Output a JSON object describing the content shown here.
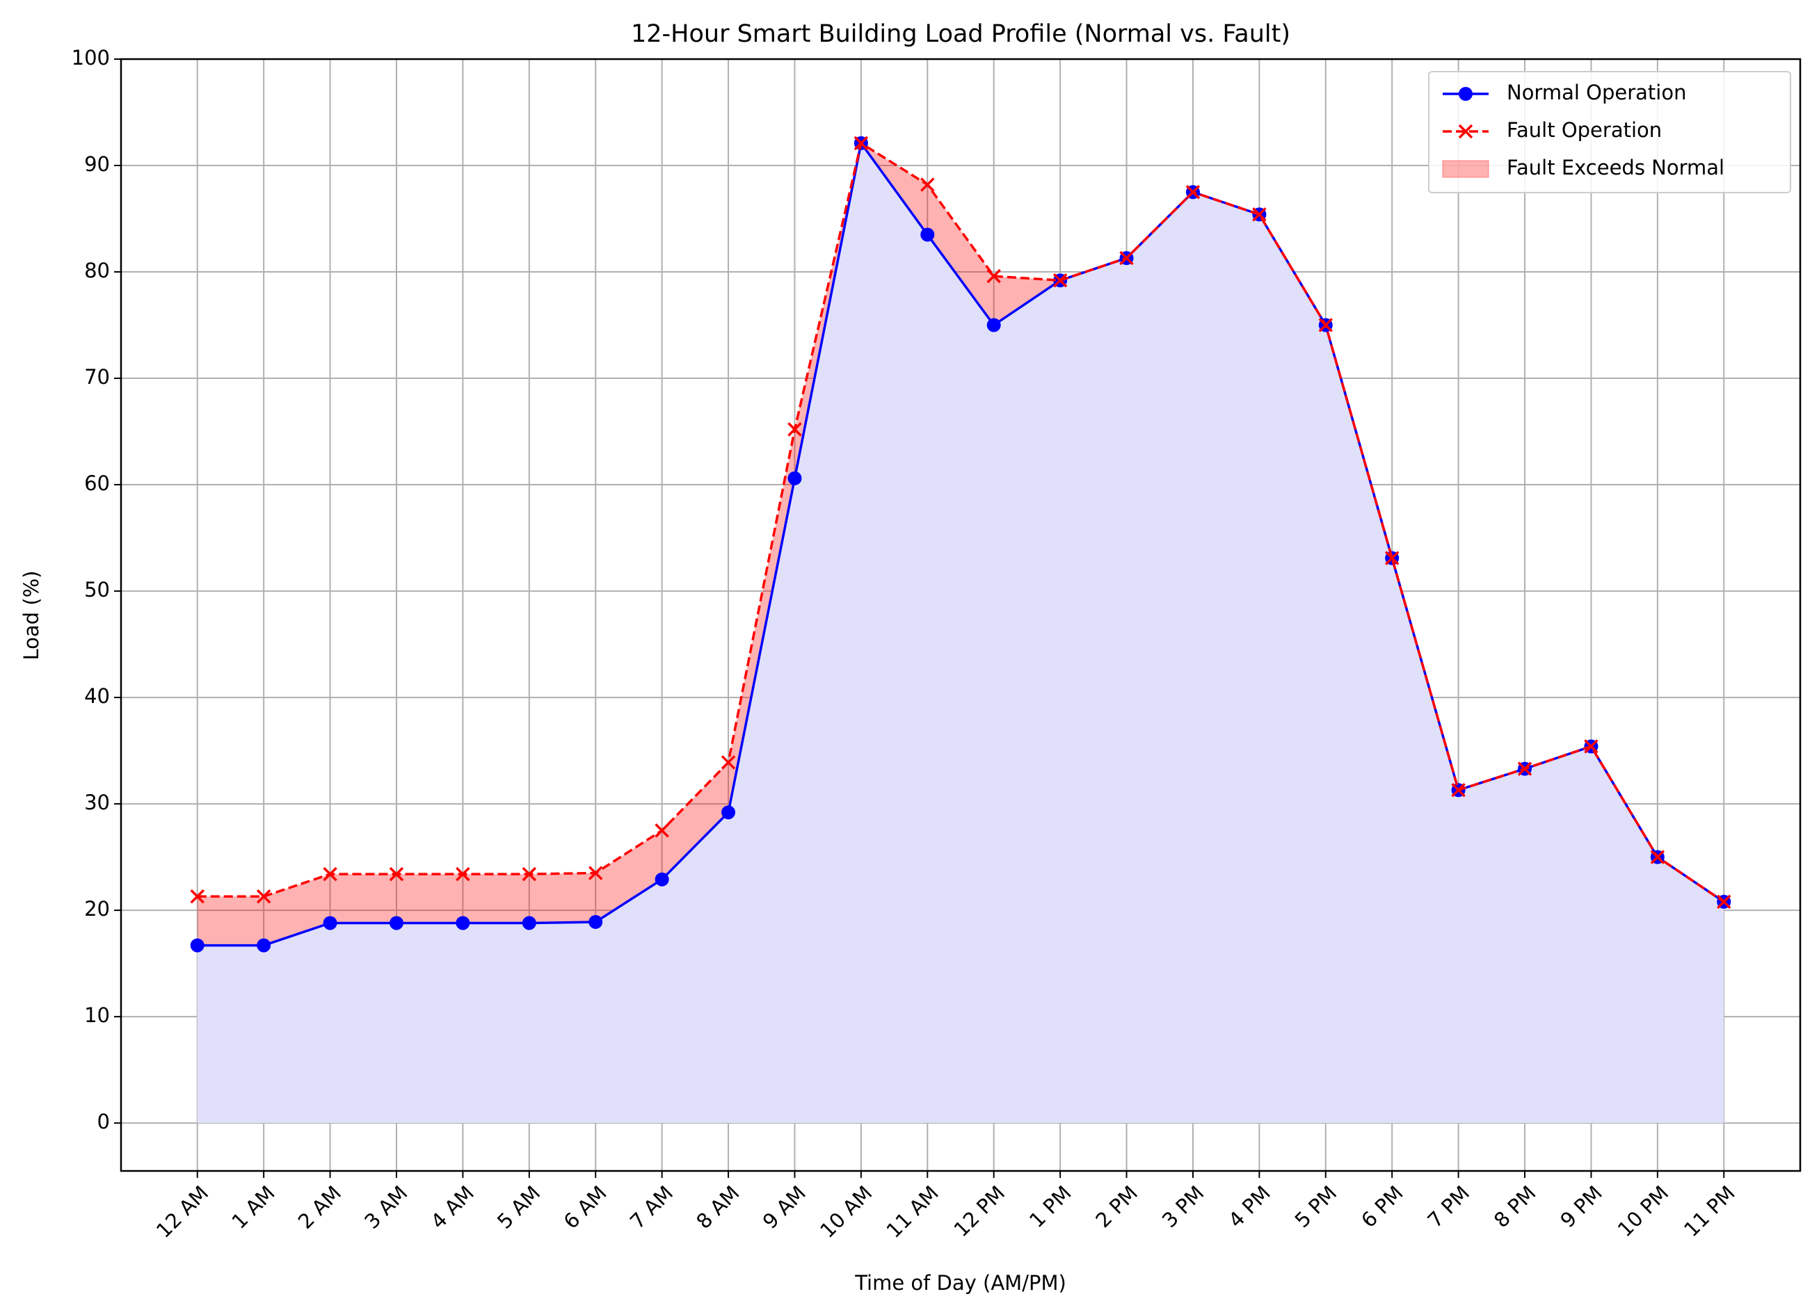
{
  "chart_data": {
    "type": "line",
    "title": "12-Hour Smart Building Load Profile (Normal vs. Fault)",
    "x_label": "Time of Day (AM/PM)",
    "y_label": "Load (%)",
    "categories": [
      "12 AM",
      "1 AM",
      "2 AM",
      "3 AM",
      "4 AM",
      "5 AM",
      "6 AM",
      "7 AM",
      "8 AM",
      "9 AM",
      "10 AM",
      "11 AM",
      "12 PM",
      "1 PM",
      "2 PM",
      "3 PM",
      "4 PM",
      "5 PM",
      "6 PM",
      "7 PM",
      "8 PM",
      "9 PM",
      "10 PM",
      "11 PM"
    ],
    "series": [
      {
        "name": "Normal Operation",
        "color": "#0000ff",
        "marker": "circle",
        "dash": "solid",
        "values": [
          16.7,
          16.7,
          18.8,
          18.8,
          18.8,
          18.8,
          18.9,
          22.9,
          29.2,
          60.6,
          92.1,
          83.5,
          75.0,
          79.2,
          81.3,
          87.5,
          85.4,
          75.0,
          53.1,
          31.3,
          33.3,
          35.4,
          25.0,
          20.8
        ]
      },
      {
        "name": "Fault Operation",
        "color": "#ff0000",
        "marker": "x",
        "dash": "dashed",
        "values": [
          21.3,
          21.3,
          23.4,
          23.4,
          23.4,
          23.4,
          23.5,
          27.5,
          33.9,
          65.2,
          92.1,
          88.2,
          79.6,
          79.2,
          81.3,
          87.5,
          85.4,
          75.0,
          53.1,
          31.3,
          33.3,
          35.4,
          25.0,
          20.8
        ]
      }
    ],
    "normal_area_color": "#e0e0fa",
    "fill_between": {
      "name": "Fault Exceeds Normal",
      "color": "#ff0000",
      "opacity": 0.3
    },
    "ylim": [
      -4.5,
      100
    ],
    "yticks": [
      0,
      10,
      20,
      30,
      40,
      50,
      60,
      70,
      80,
      90,
      100
    ],
    "grid": true,
    "legend": "upper-right"
  }
}
